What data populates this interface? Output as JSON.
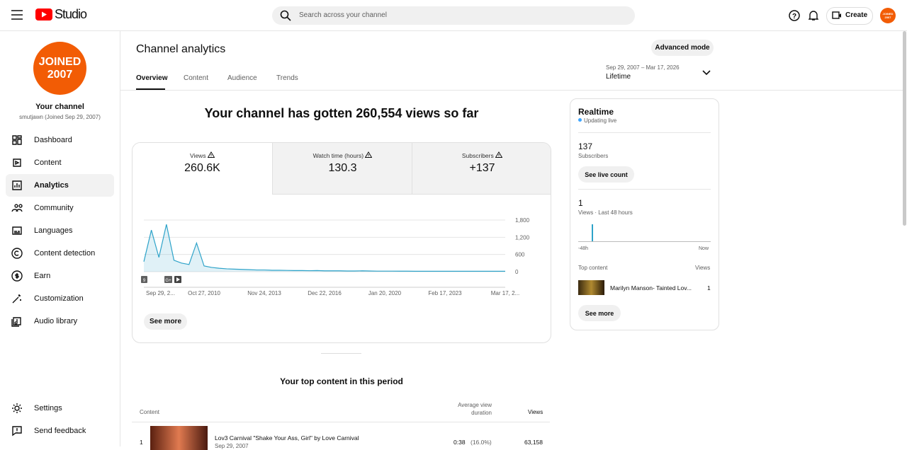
{
  "topbar": {
    "logo": "Studio",
    "search": "Search across your channel",
    "create": "Create",
    "avatar": "JOINED 2007"
  },
  "sidebar": {
    "avatar": [
      "JOINED",
      "2007"
    ],
    "channel_title": "Your channel",
    "channel_sub": "smutjawn (Joined Sep 29, 2007)",
    "nav": [
      "Dashboard",
      "Content",
      "Analytics",
      "Community",
      "Languages",
      "Content detection",
      "Earn",
      "Customization",
      "Audio library"
    ],
    "footer": [
      "Settings",
      "Send feedback"
    ]
  },
  "header": {
    "title": "Channel analytics",
    "tabs": [
      "Overview",
      "Content",
      "Audience",
      "Trends"
    ],
    "advanced": "Advanced mode",
    "date_range": "Sep 29, 2007 – Mar 17, 2026",
    "period": "Lifetime"
  },
  "overview": {
    "headline": "Your channel has gotten 260,554 views so far",
    "metrics": [
      {
        "label": "Views",
        "value": "260.6K"
      },
      {
        "label": "Watch time (hours)",
        "value": "130.3"
      },
      {
        "label": "Subscribers",
        "value": "+137"
      }
    ],
    "see_more": "See more"
  },
  "chart_data": {
    "type": "line",
    "color": "#2ea3c9",
    "categories": [
      "Sep 29, 2...",
      null,
      null,
      null,
      null,
      null,
      null,
      null,
      "Oct 27, 2010",
      null,
      null,
      null,
      null,
      null,
      null,
      null,
      "Nov 24, 2013",
      null,
      null,
      null,
      null,
      null,
      null,
      null,
      "Dec 22, 2016",
      null,
      null,
      null,
      null,
      null,
      null,
      null,
      "Jan 20, 2020",
      null,
      null,
      null,
      null,
      null,
      null,
      null,
      "Feb 17, 2023",
      null,
      null,
      null,
      null,
      null,
      null,
      null,
      "Mar 17, 2..."
    ],
    "values": [
      350,
      1450,
      500,
      1650,
      400,
      300,
      250,
      1000,
      200,
      150,
      120,
      100,
      90,
      80,
      70,
      60,
      60,
      50,
      50,
      45,
      40,
      40,
      35,
      40,
      30,
      30,
      30,
      25,
      25,
      30,
      25,
      20,
      20,
      20,
      18,
      18,
      15,
      15,
      15,
      15,
      15,
      15,
      15,
      15,
      15,
      15,
      15,
      15,
      15
    ],
    "ylim": [
      0,
      1800
    ],
    "yticks": [
      0,
      600,
      {
        "value": 1200,
        "label": "1,200"
      },
      {
        "value": 1800,
        "label": "1,800"
      }
    ],
    "grid": true,
    "markers": [
      "9",
      "G+"
    ]
  },
  "realtime": {
    "title": "Realtime",
    "status": "Updating live",
    "subs_value": "137",
    "subs_label": "Subscribers",
    "live_button": "See live count",
    "views_value": "1",
    "views_label": "Views · Last 48 hours",
    "axis_start": "-48h",
    "axis_end": "Now",
    "top_label": "Top content",
    "top_views_label": "Views",
    "top_title": "Marilyn Manson- Tainted Lov...",
    "top_views": "1",
    "see_more": "See more"
  },
  "top_content": {
    "title": "Your top content in this period",
    "col_content": "Content",
    "col_duration": "Average view duration",
    "col_views": "Views",
    "rows": [
      {
        "rank": "1",
        "title": "Lov3 Carnival \"Shake Your Ass, Girl\" by Love Carnival",
        "date": "Sep 29, 2007",
        "duration": "0:38",
        "percent": "(16.0%)",
        "views": "63,158"
      }
    ]
  }
}
